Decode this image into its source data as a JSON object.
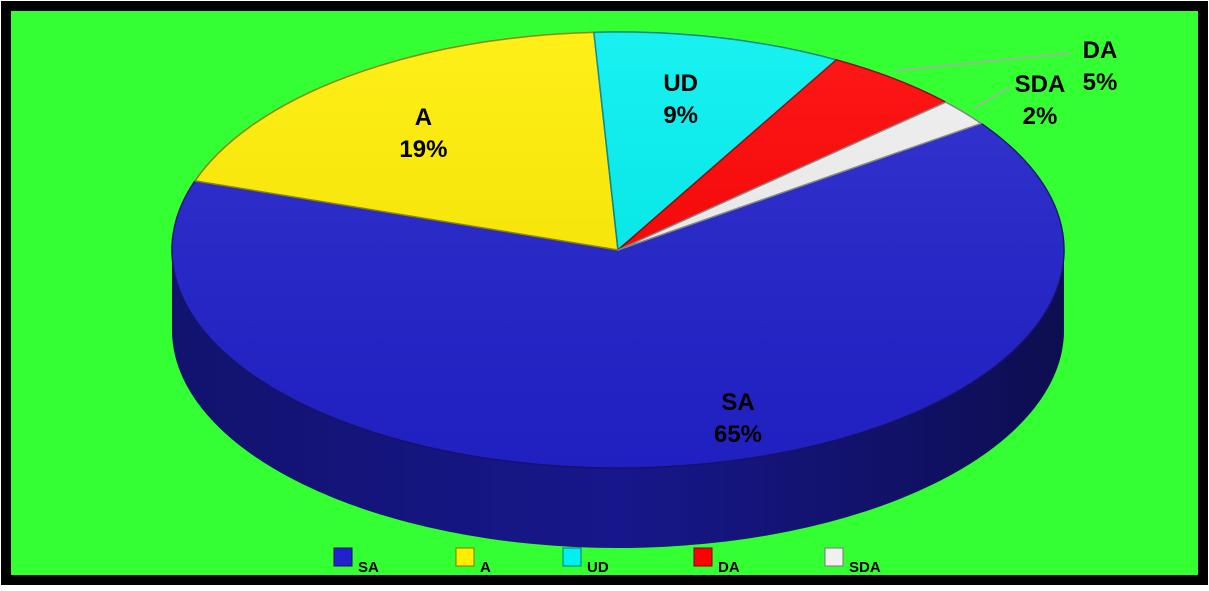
{
  "chart_data": {
    "type": "pie",
    "title": "",
    "categories": [
      "SA",
      "A",
      "UD",
      "DA",
      "SDA"
    ],
    "values": [
      65,
      19,
      9,
      5,
      2
    ],
    "percent_labels": [
      "65%",
      "19%",
      "9%",
      "5%",
      "2%"
    ],
    "colors": [
      "#2222cc",
      "#ffee00",
      "#00f0f0",
      "#ff0000",
      "#f0f0f0"
    ],
    "background": "#33ff33",
    "legend_position": "bottom",
    "three_d": true
  }
}
